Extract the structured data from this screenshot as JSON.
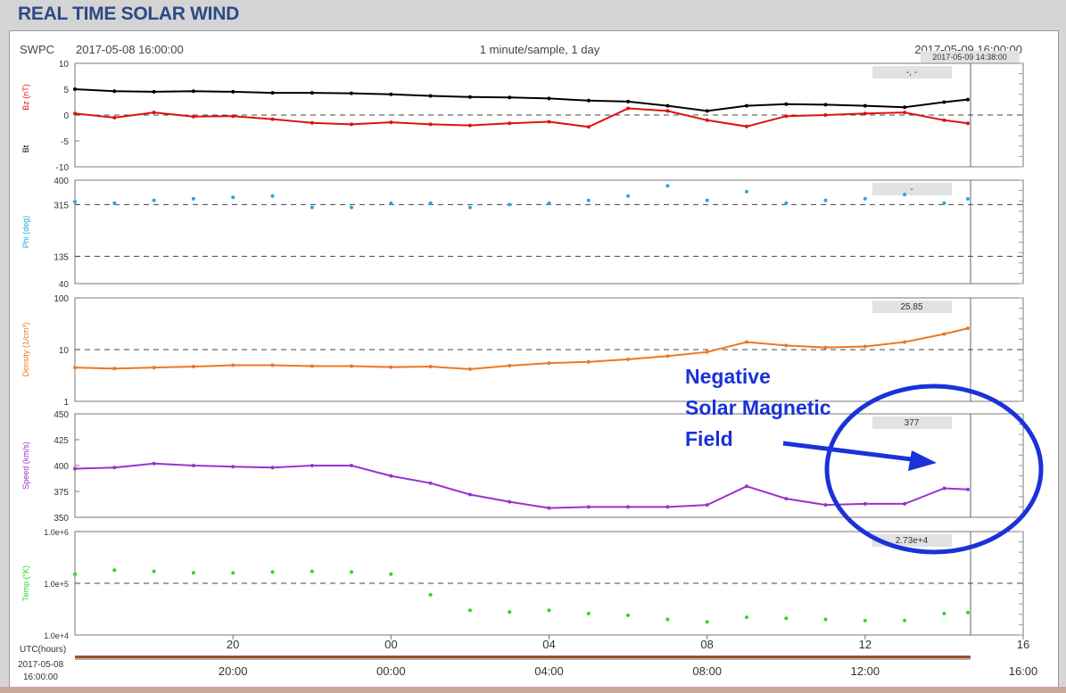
{
  "page": {
    "title": "REAL TIME SOLAR WIND"
  },
  "header": {
    "source": "SWPC",
    "start_time": "2017-05-08 16:00:00",
    "sampling": "1 minute/sample, 1 day",
    "end_time": "2017-05-09 16:00:00",
    "cursor_time": "2017-05-09 14:38:00"
  },
  "annotation": {
    "lines": [
      "Negative",
      "Solar Magnetic",
      "Field"
    ],
    "color": "#1a32d8"
  },
  "bottom_axis": {
    "label": "UTC(hours)",
    "start_date": "2017-05-08",
    "start_time": "16:00:00",
    "hour_ticks": [
      "20",
      "00",
      "04",
      "08",
      "12",
      "16"
    ],
    "time_ticks": [
      "20:00",
      "00:00",
      "04:00",
      "08:00",
      "12:00",
      "16:00"
    ]
  },
  "chart_data": [
    {
      "type": "line",
      "title": "",
      "xlabel": "UTC(hours)",
      "ylabel_parts": [
        "Bz (nT)",
        "Bt"
      ],
      "ylim": [
        -10,
        10
      ],
      "y_ticks": [
        "10",
        "5",
        "0",
        "-5",
        "-10"
      ],
      "dashed_ref": 0,
      "readout": "-, -",
      "x": [
        16,
        17,
        18,
        19,
        20,
        21,
        22,
        23,
        0,
        1,
        2,
        3,
        4,
        5,
        6,
        7,
        8,
        9,
        10,
        11,
        12,
        13,
        14,
        14.6
      ],
      "series": [
        {
          "name": "Bt",
          "color": "#000000",
          "values": [
            5.0,
            4.6,
            4.5,
            4.6,
            4.5,
            4.3,
            4.3,
            4.2,
            4.0,
            3.7,
            3.5,
            3.4,
            3.2,
            2.8,
            2.6,
            1.8,
            0.8,
            1.8,
            2.1,
            2.0,
            1.8,
            1.5,
            2.5,
            3.0
          ]
        },
        {
          "name": "Bz",
          "color": "#dd1111",
          "values": [
            0.3,
            -0.5,
            0.5,
            -0.3,
            -0.2,
            -0.8,
            -1.5,
            -1.8,
            -1.4,
            -1.8,
            -2.0,
            -1.6,
            -1.3,
            -2.3,
            1.3,
            0.8,
            -1.0,
            -2.2,
            -0.2,
            0.0,
            0.3,
            0.5,
            -1.0,
            -1.6
          ]
        }
      ]
    },
    {
      "type": "scatter",
      "title": "",
      "ylabel": "Phi (deg)",
      "ylim": [
        40,
        400
      ],
      "y_ticks": [
        "400",
        "315",
        "135",
        "40"
      ],
      "dashed_refs": [
        315,
        135
      ],
      "readout": "-",
      "x": [
        16,
        17,
        18,
        19,
        20,
        21,
        22,
        23,
        0,
        1,
        2,
        3,
        4,
        5,
        6,
        7,
        8,
        9,
        10,
        11,
        12,
        13,
        14,
        14.6
      ],
      "series": [
        {
          "name": "Phi",
          "color": "#22aadd",
          "values": [
            325,
            320,
            330,
            335,
            340,
            345,
            305,
            305,
            320,
            320,
            305,
            315,
            320,
            330,
            345,
            380,
            330,
            360,
            320,
            330,
            335,
            350,
            320,
            335
          ]
        }
      ]
    },
    {
      "type": "line",
      "title": "",
      "ylabel": "Density (1/cm³)",
      "ylim": [
        1,
        100
      ],
      "yscale": "log",
      "y_ticks": [
        "100",
        "10",
        "1"
      ],
      "dashed_ref": 10,
      "readout": "25.85",
      "x": [
        16,
        17,
        18,
        19,
        20,
        21,
        22,
        23,
        0,
        1,
        2,
        3,
        4,
        5,
        6,
        7,
        8,
        9,
        10,
        11,
        12,
        13,
        14,
        14.6
      ],
      "series": [
        {
          "name": "Density",
          "color": "#ee7722",
          "values": [
            4.5,
            4.3,
            4.5,
            4.7,
            5.0,
            5.0,
            4.8,
            4.8,
            4.6,
            4.7,
            4.2,
            4.9,
            5.5,
            5.8,
            6.5,
            7.5,
            9.0,
            14.0,
            12.0,
            11.0,
            11.5,
            14.0,
            20.0,
            25.85
          ]
        }
      ]
    },
    {
      "type": "line",
      "title": "",
      "ylabel": "Speed (km/s)",
      "ylim": [
        350,
        450
      ],
      "y_ticks": [
        "450",
        "425",
        "400",
        "375",
        "350"
      ],
      "readout": "377",
      "x": [
        16,
        17,
        18,
        19,
        20,
        21,
        22,
        23,
        0,
        1,
        2,
        3,
        4,
        5,
        6,
        7,
        8,
        9,
        10,
        11,
        12,
        13,
        14,
        14.6
      ],
      "series": [
        {
          "name": "Speed",
          "color": "#9933cc",
          "values": [
            397,
            398,
            402,
            400,
            399,
            398,
            400,
            400,
            390,
            383,
            372,
            365,
            359,
            360,
            360,
            360,
            362,
            380,
            368,
            362,
            363,
            363,
            378,
            377
          ]
        }
      ]
    },
    {
      "type": "scatter",
      "title": "",
      "ylabel": "Temp (°K)",
      "ylim": [
        10000,
        1000000
      ],
      "yscale": "log",
      "y_ticks": [
        "1.0e+6",
        "1.0e+5",
        "1.0e+4"
      ],
      "dashed_ref": 100000,
      "readout": "2.73e+4",
      "x": [
        16,
        17,
        18,
        19,
        20,
        21,
        22,
        23,
        0,
        1,
        2,
        3,
        4,
        5,
        6,
        7,
        8,
        9,
        10,
        11,
        12,
        13,
        14,
        14.6
      ],
      "series": [
        {
          "name": "Temp",
          "color": "#22dd22",
          "values": [
            150000,
            180000,
            170000,
            160000,
            160000,
            165000,
            170000,
            165000,
            150000,
            60000,
            30000,
            28000,
            30000,
            26000,
            24000,
            20000,
            18000,
            22000,
            21000,
            20000,
            19000,
            19000,
            26000,
            27300
          ]
        }
      ]
    }
  ]
}
